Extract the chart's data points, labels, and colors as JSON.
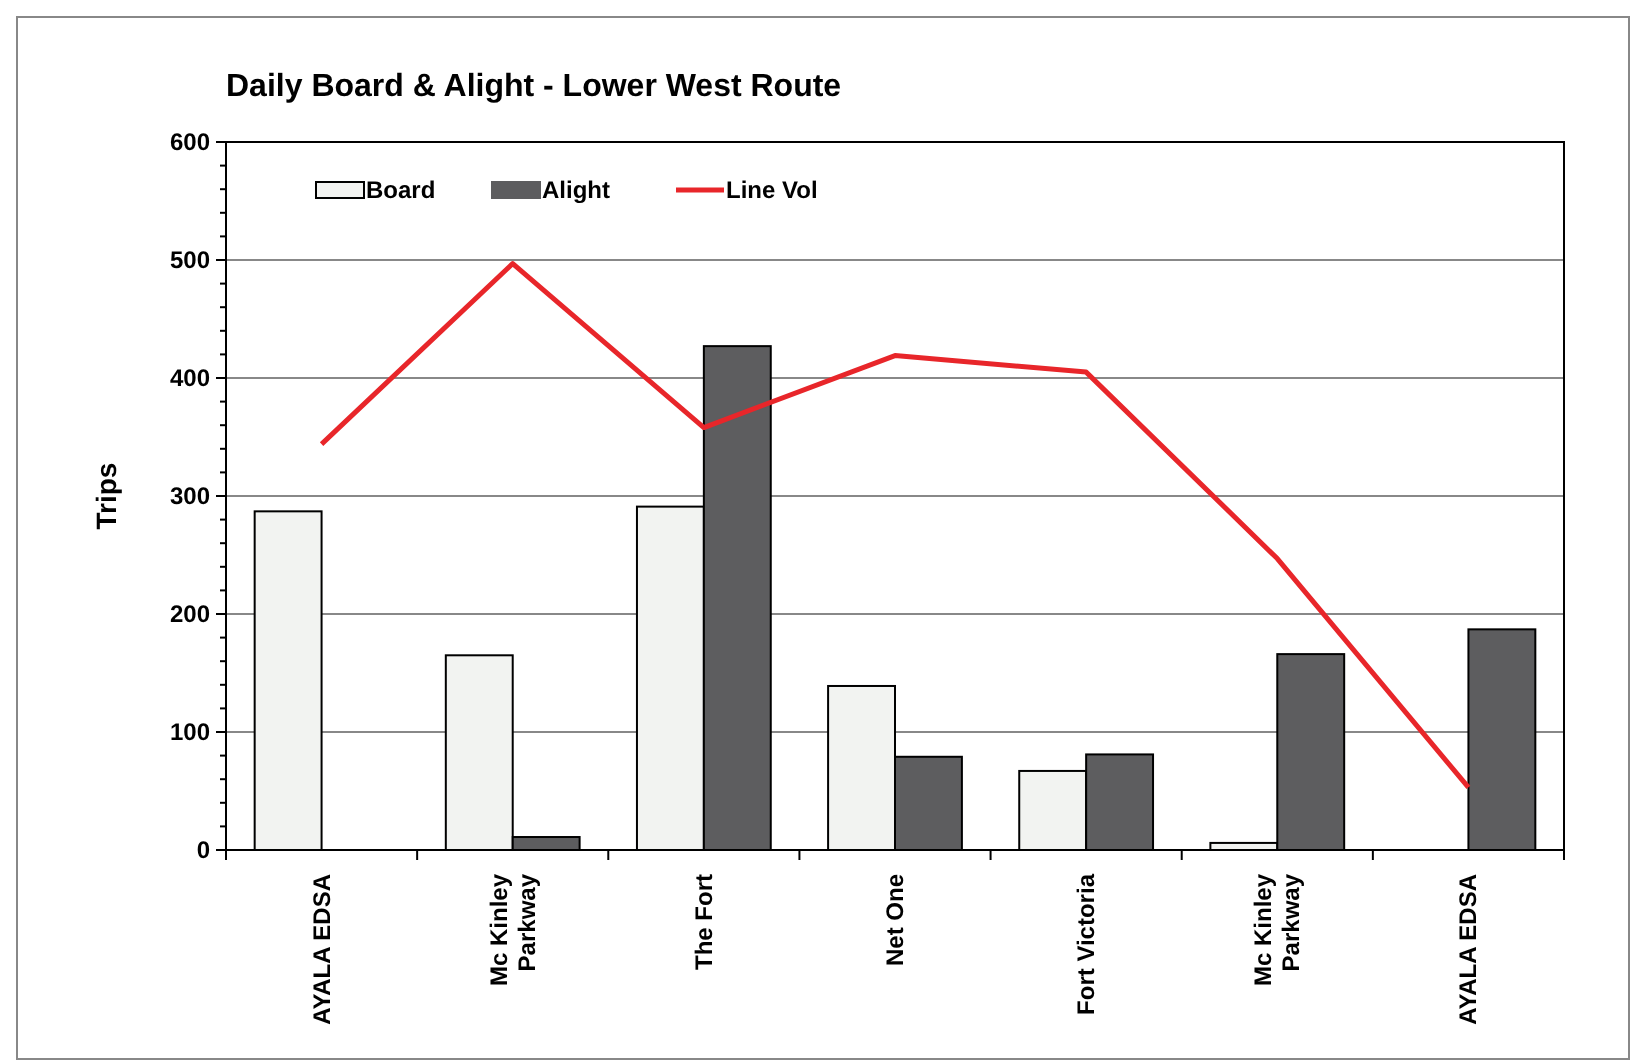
{
  "chart_data": {
    "type": "bar",
    "title": "Daily Board & Alight - Lower West Route",
    "ylabel": "Trips",
    "categories": [
      "AYALA EDSA",
      "Mc Kinley Parkway",
      "The Fort",
      "Net One",
      "Fort Victoria",
      "Mc Kinley Parkway",
      "AYALA EDSA"
    ],
    "series": [
      {
        "name": "Board",
        "color": "#f2f3f1",
        "values": [
          287,
          165,
          291,
          139,
          67,
          6,
          0
        ]
      },
      {
        "name": "Alight",
        "color": "#5d5d5f",
        "values": [
          0,
          11,
          427,
          79,
          81,
          166,
          187
        ]
      },
      {
        "name": "Line Vol",
        "type": "line",
        "color": "#e8262a",
        "values": [
          344,
          497,
          358,
          419,
          405,
          247,
          53
        ]
      }
    ],
    "ylim": [
      0,
      600
    ],
    "yticks": [
      0,
      100,
      200,
      300,
      400,
      500,
      600
    ],
    "grid": "y",
    "legend": "top left"
  }
}
